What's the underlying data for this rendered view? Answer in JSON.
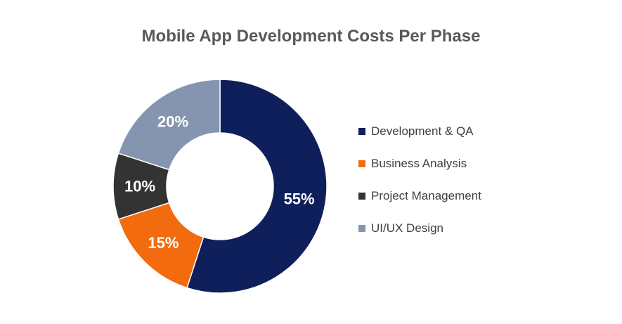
{
  "chart_data": {
    "type": "pie",
    "title": "Mobile App Development Costs Per Phase",
    "donut": true,
    "categories": [
      "Development & QA",
      "Business Analysis",
      "Project Management",
      "UI/UX Design"
    ],
    "values": [
      55,
      15,
      10,
      20
    ],
    "data_labels": [
      "55%",
      "15%",
      "10%",
      "20%"
    ],
    "colors": [
      "#0e1f5b",
      "#f26b0f",
      "#333333",
      "#8595b0"
    ],
    "legend_position": "right",
    "start_angle": "top, clockwise"
  }
}
